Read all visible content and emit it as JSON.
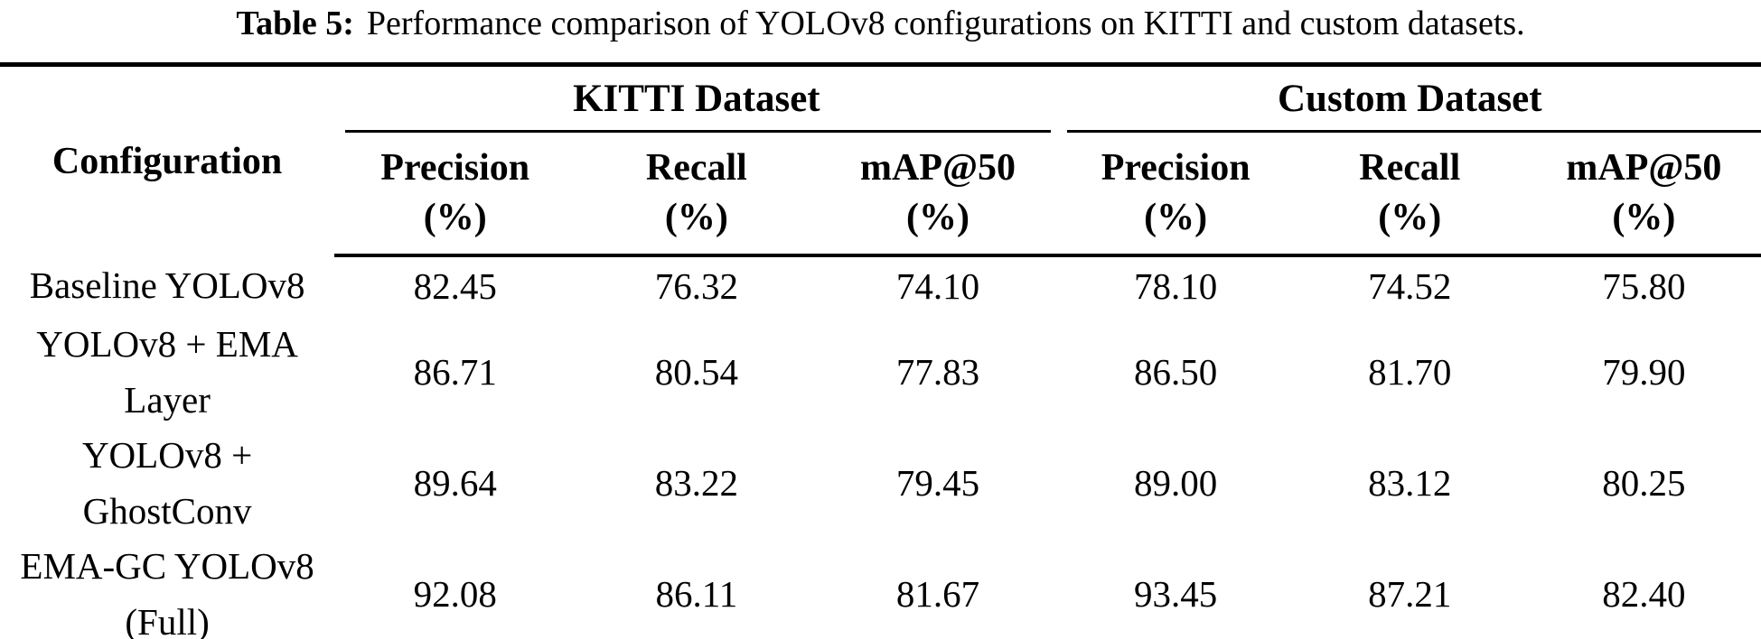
{
  "caption": {
    "label": "Table 5:",
    "text": "Performance comparison of YOLOv8 configurations on KITTI and custom datasets."
  },
  "table": {
    "config_header": "Configuration",
    "groups": [
      {
        "label": "KITTI Dataset"
      },
      {
        "label": "Custom Dataset"
      }
    ],
    "subheaders": [
      {
        "line1": "Precision",
        "line2": "(%)"
      },
      {
        "line1": "Recall",
        "line2": "(%)"
      },
      {
        "line1": "mAP@50",
        "line2": "(%)"
      },
      {
        "line1": "Precision",
        "line2": "(%)"
      },
      {
        "line1": "Recall",
        "line2": "(%)"
      },
      {
        "line1": "mAP@50",
        "line2": "(%)"
      }
    ],
    "rows": [
      {
        "config": "Baseline YOLOv8",
        "values": [
          "82.45",
          "76.32",
          "74.10",
          "78.10",
          "74.52",
          "75.80"
        ]
      },
      {
        "config": "YOLOv8 + EMA Layer",
        "values": [
          "86.71",
          "80.54",
          "77.83",
          "86.50",
          "81.70",
          "79.90"
        ]
      },
      {
        "config": "YOLOv8 + GhostConv",
        "values": [
          "89.64",
          "83.22",
          "79.45",
          "89.00",
          "83.12",
          "80.25"
        ]
      },
      {
        "config": "EMA-GC YOLOv8 (Full)",
        "values": [
          "92.08",
          "86.11",
          "81.67",
          "93.45",
          "87.21",
          "82.40"
        ]
      }
    ]
  },
  "colors": {
    "text": "#000000",
    "background": "#ffffff",
    "rule": "#000000"
  }
}
